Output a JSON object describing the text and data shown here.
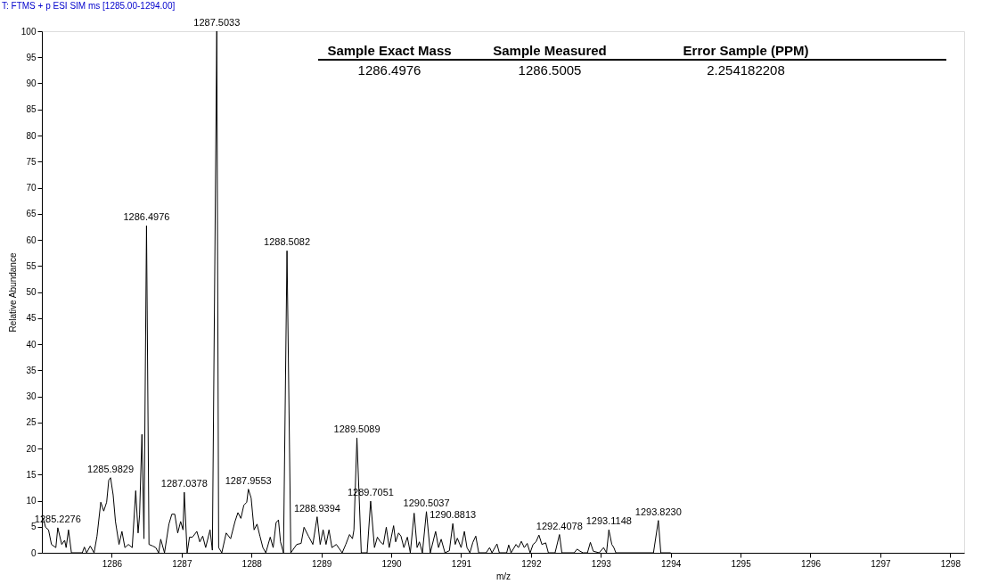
{
  "chart_data": {
    "type": "line",
    "title": "T: FTMS + p ESI SIM ms [1285.00-1294.00]",
    "xlabel": "m/z",
    "ylabel": "Relative Abundance",
    "x": [
      1285.0,
      1285.019,
      1285.053,
      1285.095,
      1285.137,
      1285.2,
      1285.2276,
      1285.284,
      1285.326,
      1285.347,
      1285.381,
      1285.423,
      1285.578,
      1285.608,
      1285.641,
      1285.692,
      1285.747,
      1285.789,
      1285.843,
      1285.885,
      1285.927,
      1285.957,
      1285.9829,
      1286.02,
      1286.053,
      1286.104,
      1286.146,
      1286.188,
      1286.238,
      1286.293,
      1286.343,
      1286.377,
      1286.398,
      1286.432,
      1286.461,
      1286.4976,
      1286.533,
      1286.587,
      1286.629,
      1286.671,
      1286.701,
      1286.755,
      1286.818,
      1286.86,
      1286.902,
      1286.944,
      1286.986,
      1287.02,
      1287.0378,
      1287.079,
      1287.113,
      1287.155,
      1287.218,
      1287.26,
      1287.302,
      1287.344,
      1287.407,
      1287.44,
      1287.5033,
      1287.53,
      1287.575,
      1287.638,
      1287.701,
      1287.764,
      1287.806,
      1287.848,
      1287.89,
      1287.932,
      1287.9553,
      1287.995,
      1288.037,
      1288.079,
      1288.121,
      1288.163,
      1288.205,
      1288.268,
      1288.31,
      1288.352,
      1288.386,
      1288.415,
      1288.458,
      1288.5082,
      1288.563,
      1288.647,
      1288.71,
      1288.752,
      1288.815,
      1288.878,
      1288.9394,
      1288.983,
      1289.025,
      1289.067,
      1289.109,
      1289.151,
      1289.214,
      1289.298,
      1289.349,
      1289.403,
      1289.445,
      1289.466,
      1289.5089,
      1289.571,
      1289.655,
      1289.7051,
      1289.76,
      1289.802,
      1289.844,
      1289.887,
      1289.929,
      1289.971,
      1290.034,
      1290.063,
      1290.105,
      1290.139,
      1290.181,
      1290.231,
      1290.273,
      1290.328,
      1290.37,
      1290.403,
      1290.446,
      1290.5037,
      1290.559,
      1290.635,
      1290.677,
      1290.715,
      1290.769,
      1290.832,
      1290.8813,
      1290.916,
      1290.946,
      1291.0,
      1291.047,
      1291.084,
      1291.126,
      1291.168,
      1291.21,
      1291.252,
      1291.358,
      1291.408,
      1291.442,
      1291.513,
      1291.547,
      1291.652,
      1291.681,
      1291.715,
      1291.786,
      1291.82,
      1291.862,
      1291.904,
      1291.946,
      1291.988,
      1292.03,
      1292.072,
      1292.114,
      1292.156,
      1292.211,
      1292.249,
      1292.345,
      1292.4078,
      1292.442,
      1292.618,
      1292.66,
      1292.703,
      1292.745,
      1292.808,
      1292.85,
      1292.892,
      1292.976,
      1293.039,
      1293.081,
      1293.1148,
      1293.157,
      1293.186,
      1293.215,
      1293.753,
      1293.823,
      1293.858,
      1294.0
    ],
    "values": [
      6.6,
      6.6,
      4.9,
      4.4,
      1.6,
      1.0,
      4.8,
      1.6,
      2.4,
      1.0,
      4.4,
      0,
      0,
      1.1,
      0,
      1.3,
      0,
      3.2,
      9.7,
      8.0,
      9.7,
      13.9,
      14.4,
      11.1,
      6.0,
      1.6,
      4.1,
      1.0,
      1.6,
      1.0,
      11.9,
      3.8,
      7.2,
      22.7,
      2.7,
      62.7,
      1.6,
      1.3,
      1.0,
      0,
      2.6,
      0,
      5.5,
      7.4,
      7.4,
      3.8,
      6.0,
      4.4,
      11.6,
      0,
      3.0,
      3.0,
      4.1,
      2.1,
      3.2,
      1.0,
      4.4,
      0.5,
      100,
      1.0,
      0,
      3.8,
      2.7,
      6.0,
      7.7,
      6.6,
      9.1,
      9.7,
      12.2,
      10.5,
      4.4,
      5.5,
      3.2,
      1.0,
      0,
      3.0,
      1.0,
      5.8,
      6.3,
      2.1,
      0,
      57.9,
      0,
      1.6,
      1.8,
      4.9,
      3.2,
      1.6,
      6.9,
      1.6,
      4.4,
      1.6,
      4.4,
      1.0,
      1.6,
      0,
      1.6,
      3.5,
      2.7,
      4.4,
      22.0,
      0,
      0,
      9.9,
      1.0,
      3.0,
      2.1,
      1.6,
      4.9,
      1.0,
      5.2,
      2.1,
      3.8,
      3.2,
      1.0,
      3.0,
      0,
      7.6,
      1.0,
      2.1,
      0,
      7.9,
      0,
      4.1,
      1.0,
      2.6,
      0,
      0.4,
      5.6,
      1.6,
      2.8,
      1.0,
      4.1,
      1.0,
      0,
      2.0,
      3.2,
      0,
      0,
      1.0,
      0,
      1.7,
      0,
      0,
      1.5,
      0,
      1.6,
      1.0,
      2.2,
      1.0,
      1.8,
      0,
      1.6,
      2.1,
      3.4,
      1.6,
      1.9,
      0,
      0,
      3.5,
      0,
      0,
      0.7,
      0.3,
      0,
      0,
      2.0,
      0.3,
      0,
      1.0,
      0,
      4.4,
      1.6,
      1.0,
      0,
      0,
      6.2,
      0,
      0
    ],
    "color": "#000000",
    "xlim": [
      1285.0,
      1298.2
    ],
    "xticks": [
      1286,
      1287,
      1288,
      1289,
      1290,
      1291,
      1292,
      1293,
      1294,
      1295,
      1296,
      1297,
      1298
    ],
    "ylim": [
      0,
      100
    ],
    "yticks": [
      0,
      5,
      10,
      15,
      20,
      25,
      30,
      35,
      40,
      45,
      50,
      55,
      60,
      65,
      70,
      75,
      80,
      85,
      90,
      95,
      100
    ],
    "grid": false,
    "marker": "none",
    "line_style": "solid",
    "annotations": [
      "Sample Exact Mass",
      "Sample Measured",
      "Error Sample (PPM)",
      "1286.4976",
      "1286.5005",
      "2.254182208",
      {
        "text": "1285.2276",
        "x": 1285.2276,
        "y": 4.8
      },
      {
        "text": "1285.9829",
        "x": 1285.9829,
        "y": 14.4
      },
      {
        "text": "1286.4976",
        "x": 1286.4976,
        "y": 62.7
      },
      {
        "text": "1287.0378",
        "x": 1287.0378,
        "y": 11.6
      },
      {
        "text": "1287.5033",
        "x": 1287.5033,
        "y": 100
      },
      {
        "text": "1287.9553",
        "x": 1287.9553,
        "y": 12.2
      },
      {
        "text": "1288.5082",
        "x": 1288.5082,
        "y": 57.9
      },
      {
        "text": "1288.9394",
        "x": 1288.9394,
        "y": 6.9
      },
      {
        "text": "1289.5089",
        "x": 1289.5089,
        "y": 22.0
      },
      {
        "text": "1289.7051",
        "x": 1289.7051,
        "y": 9.9
      },
      {
        "text": "1290.5037",
        "x": 1290.5037,
        "y": 7.9
      },
      {
        "text": "1290.8813",
        "x": 1290.8813,
        "y": 5.6
      },
      {
        "text": "1292.4078",
        "x": 1292.4078,
        "y": 3.5
      },
      {
        "text": "1293.1148",
        "x": 1293.1148,
        "y": 4.4
      },
      {
        "text": "1293.8230",
        "x": 1293.823,
        "y": 6.2
      }
    ]
  }
}
